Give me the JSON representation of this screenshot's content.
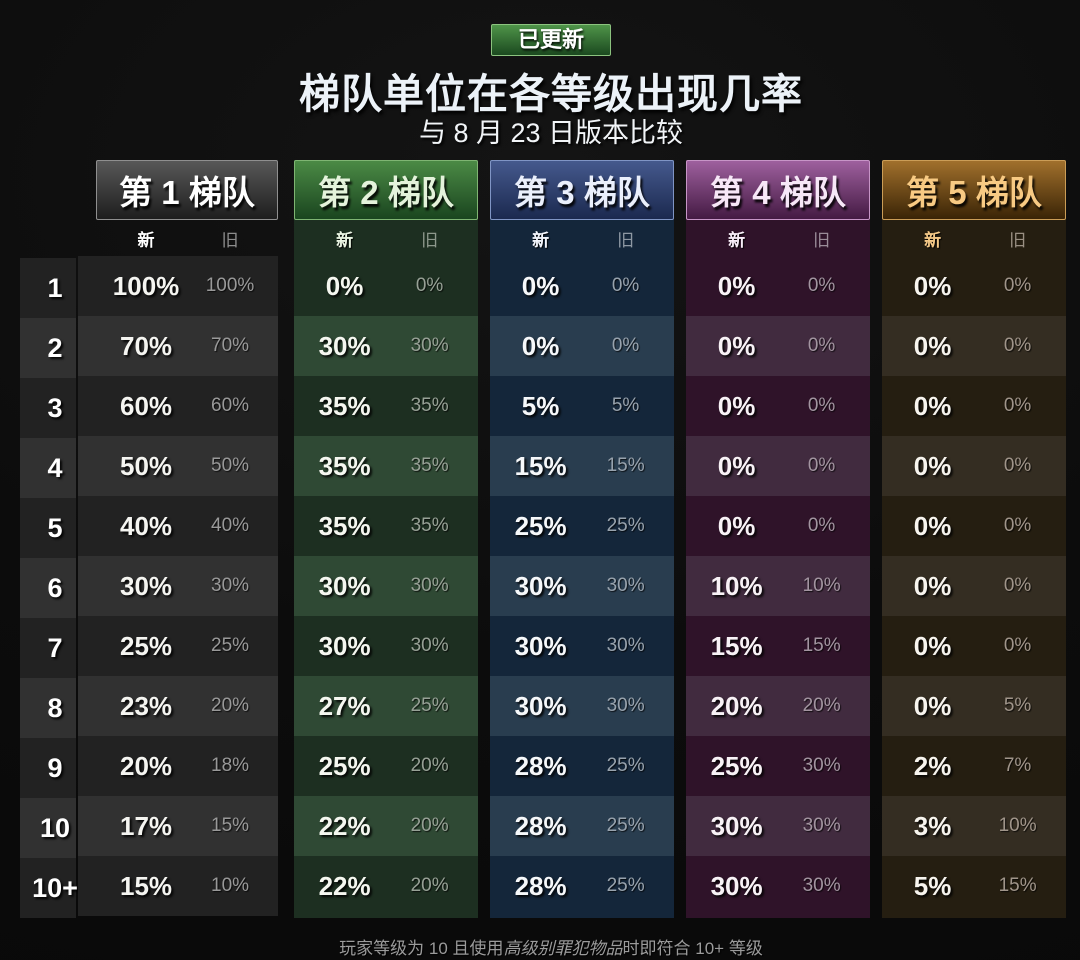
{
  "badge": {
    "label": "已更新",
    "bg_top": "#4f9449",
    "bg_bottom": "#1b491f",
    "border": "#8cc47f"
  },
  "title": "梯队单位在各等级出现几率",
  "subtitle": "与 8 月 23 日版本比较",
  "legend": {
    "new": "新",
    "old": "旧"
  },
  "levels": [
    "1",
    "2",
    "3",
    "4",
    "5",
    "6",
    "7",
    "8",
    "9",
    "10",
    "10+"
  ],
  "tiers": [
    {
      "label": "第 1 梯队",
      "colors": {
        "header_top": "#585858",
        "header_bottom": "#1e1e1e",
        "header_border": "#8f8f8f",
        "header_text": "#ffffff",
        "new_label": "#ffffff",
        "old_label": "#8d8d8d",
        "row_odd": "#222222",
        "row_even": "#313131",
        "tint": "transparent",
        "new_text": "#f5f5f1",
        "old_text": "#999999"
      },
      "new": [
        "100%",
        "70%",
        "60%",
        "50%",
        "40%",
        "30%",
        "25%",
        "23%",
        "20%",
        "17%",
        "15%"
      ],
      "old": [
        "100%",
        "70%",
        "60%",
        "50%",
        "40%",
        "30%",
        "25%",
        "20%",
        "18%",
        "15%",
        "10%"
      ]
    },
    {
      "label": "第 2 梯队",
      "colors": {
        "header_top": "#4b8a45",
        "header_bottom": "#1a451f",
        "header_border": "#7fb573",
        "header_text": "#e4f3db",
        "new_label": "#eaf5e3",
        "old_label": "#8d988c",
        "row_odd": "#1d2f21",
        "row_even": "#2f4934",
        "tint": "#1d2f21",
        "new_text": "#f5f7f0",
        "old_text": "#97a196"
      },
      "new": [
        "0%",
        "30%",
        "35%",
        "35%",
        "35%",
        "30%",
        "30%",
        "27%",
        "25%",
        "22%",
        "22%"
      ],
      "old": [
        "0%",
        "30%",
        "35%",
        "35%",
        "35%",
        "30%",
        "30%",
        "25%",
        "20%",
        "20%",
        "20%"
      ]
    },
    {
      "label": "第 3 梯队",
      "colors": {
        "header_top": "#45598d",
        "header_bottom": "#1b294f",
        "header_border": "#8095c5",
        "header_text": "#eaeffb",
        "new_label": "#f2f5fc",
        "old_label": "#8e98a3",
        "row_odd": "#14263a",
        "row_even": "#293d4f",
        "tint": "#14263a",
        "new_text": "#f6f8fa",
        "old_text": "#98a3ae"
      },
      "new": [
        "0%",
        "0%",
        "5%",
        "15%",
        "25%",
        "30%",
        "30%",
        "30%",
        "28%",
        "28%",
        "28%"
      ],
      "old": [
        "0%",
        "0%",
        "5%",
        "15%",
        "25%",
        "30%",
        "30%",
        "30%",
        "25%",
        "25%",
        "25%"
      ]
    },
    {
      "label": "第 4 梯队",
      "colors": {
        "header_top": "#9e609e",
        "header_bottom": "#441a43",
        "header_border": "#c795c7",
        "header_text": "#f7e7f7",
        "new_label": "#f7edf7",
        "old_label": "#9a8c98",
        "row_odd": "#2f1329",
        "row_even": "#412b3f",
        "tint": "#2f1329",
        "new_text": "#f8f2f6",
        "old_text": "#a395a1"
      },
      "new": [
        "0%",
        "0%",
        "0%",
        "0%",
        "0%",
        "10%",
        "15%",
        "20%",
        "25%",
        "30%",
        "30%"
      ],
      "old": [
        "0%",
        "0%",
        "0%",
        "0%",
        "0%",
        "10%",
        "15%",
        "20%",
        "30%",
        "30%",
        "30%"
      ]
    },
    {
      "label": "第 5 梯队",
      "colors": {
        "header_top": "#a1702c",
        "header_bottom": "#3a2406",
        "header_border": "#cb9d57",
        "header_text": "#f8ca83",
        "new_label": "#f4c887",
        "old_label": "#9a9083",
        "row_odd": "#251e11",
        "row_even": "#342d22",
        "tint": "#251e11",
        "new_text": "#f7f4ee",
        "old_text": "#a0958a"
      },
      "new": [
        "0%",
        "0%",
        "0%",
        "0%",
        "0%",
        "0%",
        "0%",
        "0%",
        "2%",
        "3%",
        "5%"
      ],
      "old": [
        "0%",
        "0%",
        "0%",
        "0%",
        "0%",
        "0%",
        "0%",
        "5%",
        "7%",
        "10%",
        "15%"
      ]
    }
  ],
  "footer": {
    "pre": "玩家等级为 10 且使用",
    "emphasis": "高级别罪犯物品",
    "post": "时即符合 10+ 等级"
  },
  "chart_data": {
    "type": "table",
    "title": "梯队单位在各等级出现几率",
    "subtitle": "与 8 月 23 日版本比较",
    "status_badge": "已更新",
    "levels": [
      "1",
      "2",
      "3",
      "4",
      "5",
      "6",
      "7",
      "8",
      "9",
      "10",
      "10+"
    ],
    "column_subheaders": [
      "新",
      "旧"
    ],
    "unit": "%",
    "series": [
      {
        "name": "第 1 梯队",
        "new": [
          100,
          70,
          60,
          50,
          40,
          30,
          25,
          23,
          20,
          17,
          15
        ],
        "old": [
          100,
          70,
          60,
          50,
          40,
          30,
          25,
          20,
          18,
          15,
          10
        ]
      },
      {
        "name": "第 2 梯队",
        "new": [
          0,
          30,
          35,
          35,
          35,
          30,
          30,
          27,
          25,
          22,
          22
        ],
        "old": [
          0,
          30,
          35,
          35,
          35,
          30,
          30,
          25,
          20,
          20,
          20
        ]
      },
      {
        "name": "第 3 梯队",
        "new": [
          0,
          0,
          5,
          15,
          25,
          30,
          30,
          30,
          28,
          28,
          28
        ],
        "old": [
          0,
          0,
          5,
          15,
          25,
          30,
          30,
          30,
          25,
          25,
          25
        ]
      },
      {
        "name": "第 4 梯队",
        "new": [
          0,
          0,
          0,
          0,
          0,
          10,
          15,
          20,
          25,
          30,
          30
        ],
        "old": [
          0,
          0,
          0,
          0,
          0,
          10,
          15,
          20,
          30,
          30,
          30
        ]
      },
      {
        "name": "第 5 梯队",
        "new": [
          0,
          0,
          0,
          0,
          0,
          0,
          0,
          0,
          2,
          3,
          5
        ],
        "old": [
          0,
          0,
          0,
          0,
          0,
          0,
          0,
          5,
          7,
          10,
          15
        ]
      }
    ],
    "footnote": "玩家等级为 10 且使用高级别罪犯物品时即符合 10+ 等级"
  }
}
